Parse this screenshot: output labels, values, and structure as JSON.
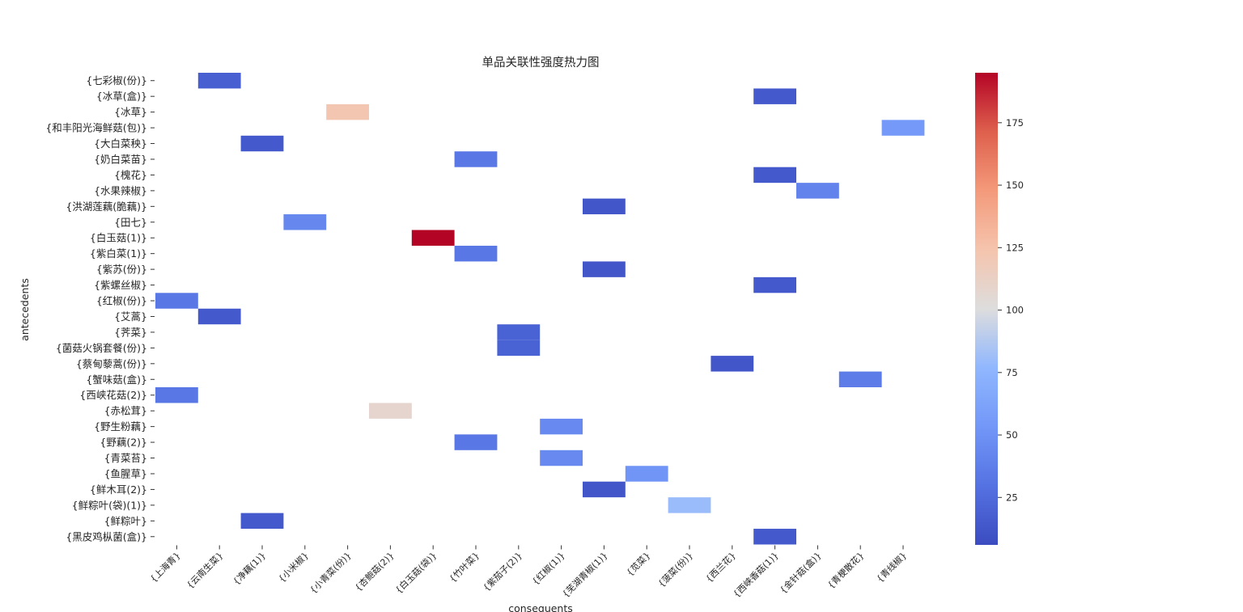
{
  "chart_data": {
    "type": "heatmap",
    "title": "单品关联性强度热力图",
    "xlabel": "consequents",
    "ylabel": "antecedents",
    "rows": [
      "{七彩椒(份)}",
      "{冰草(盒)}",
      "{冰草}",
      "{和丰阳光海鲜菇(包)}",
      "{大白菜秧}",
      "{奶白菜苗}",
      "{槐花}",
      "{水果辣椒}",
      "{洪湖莲藕(脆藕)}",
      "{田七}",
      "{白玉菇(1)}",
      "{紫白菜(1)}",
      "{紫苏(份)}",
      "{紫螺丝椒}",
      "{红椒(份)}",
      "{艾蒿}",
      "{荠菜}",
      "{菌菇火锅套餐(份)}",
      "{蔡甸藜蒿(份)}",
      "{蟹味菇(盒)}",
      "{西峡花菇(2)}",
      "{赤松茸}",
      "{野生粉藕}",
      "{野藕(2)}",
      "{青菜苔}",
      "{鱼腥草}",
      "{鲜木耳(2)}",
      "{鲜粽叶(袋)(1)}",
      "{鲜粽叶}",
      "{黑皮鸡枞菌(盒)}"
    ],
    "columns": [
      "{上海青}",
      "{云南生菜}",
      "{净藕(1)}",
      "{小米椒}",
      "{小青菜(份)}",
      "{杏鲍菇(2)}",
      "{白玉菇(袋)}",
      "{竹叶菜}",
      "{紫茄子(2)}",
      "{红椒(1)}",
      "{芜湖青椒(1)}",
      "{苋菜}",
      "{菠菜(份)}",
      "{西兰花}",
      "{西峡香菇(1)}",
      "{金针菇(盒)}",
      "{青梗散花}",
      "{青线椒}"
    ],
    "cells": [
      {
        "row": "{七彩椒(份)}",
        "col": "{云南生菜}",
        "value": 18
      },
      {
        "row": "{冰草(盒)}",
        "col": "{西峡香菇(1)}",
        "value": 14
      },
      {
        "row": "{冰草}",
        "col": "{小青菜(份)}",
        "value": 122
      },
      {
        "row": "{和丰阳光海鲜菇(包)}",
        "col": "{青线椒}",
        "value": 55
      },
      {
        "row": "{大白菜秧}",
        "col": "{净藕(1)}",
        "value": 14
      },
      {
        "row": "{奶白菜苗}",
        "col": "{竹叶菜}",
        "value": 33
      },
      {
        "row": "{槐花}",
        "col": "{西峡香菇(1)}",
        "value": 14
      },
      {
        "row": "{水果辣椒}",
        "col": "{金针菇(盒)}",
        "value": 40
      },
      {
        "row": "{洪湖莲藕(脆藕)}",
        "col": "{芜湖青椒(1)}",
        "value": 12
      },
      {
        "row": "{田七}",
        "col": "{小米椒}",
        "value": 43
      },
      {
        "row": "{白玉菇(1)}",
        "col": "{白玉菇(袋)}",
        "value": 195
      },
      {
        "row": "{紫白菜(1)}",
        "col": "{竹叶菜}",
        "value": 33
      },
      {
        "row": "{紫苏(份)}",
        "col": "{芜湖青椒(1)}",
        "value": 12
      },
      {
        "row": "{紫螺丝椒}",
        "col": "{西峡香菇(1)}",
        "value": 14
      },
      {
        "row": "{红椒(份)}",
        "col": "{上海青}",
        "value": 33
      },
      {
        "row": "{艾蒿}",
        "col": "{云南生菜}",
        "value": 14
      },
      {
        "row": "{荠菜}",
        "col": "{紫茄子(2)}",
        "value": 20
      },
      {
        "row": "{菌菇火锅套餐(份)}",
        "col": "{紫茄子(2)}",
        "value": 20
      },
      {
        "row": "{蔡甸藜蒿(份)}",
        "col": "{西兰花}",
        "value": 12
      },
      {
        "row": "{蟹味菇(盒)}",
        "col": "{青梗散花}",
        "value": 36
      },
      {
        "row": "{西峡花菇(2)}",
        "col": "{上海青}",
        "value": 33
      },
      {
        "row": "{赤松茸}",
        "col": "{杏鲍菇(2)}",
        "value": 108
      },
      {
        "row": "{野生粉藕}",
        "col": "{红椒(1)}",
        "value": 45
      },
      {
        "row": "{野藕(2)}",
        "col": "{竹叶菜}",
        "value": 33
      },
      {
        "row": "{青菜苔}",
        "col": "{红椒(1)}",
        "value": 45
      },
      {
        "row": "{鱼腥草}",
        "col": "{苋菜}",
        "value": 52
      },
      {
        "row": "{鲜木耳(2)}",
        "col": "{芜湖青椒(1)}",
        "value": 12
      },
      {
        "row": "{鲜粽叶(袋)(1)}",
        "col": "{菠菜(份)}",
        "value": 80
      },
      {
        "row": "{鲜粽叶}",
        "col": "{净藕(1)}",
        "value": 14
      },
      {
        "row": "{黑皮鸡枞菌(盒)}",
        "col": "{西峡香菇(1)}",
        "value": 14
      }
    ],
    "colormap": "coolwarm",
    "vmin": 6,
    "vmax": 195,
    "colorbar_ticks": [
      25,
      50,
      75,
      100,
      125,
      150,
      175
    ],
    "grid": false
  }
}
